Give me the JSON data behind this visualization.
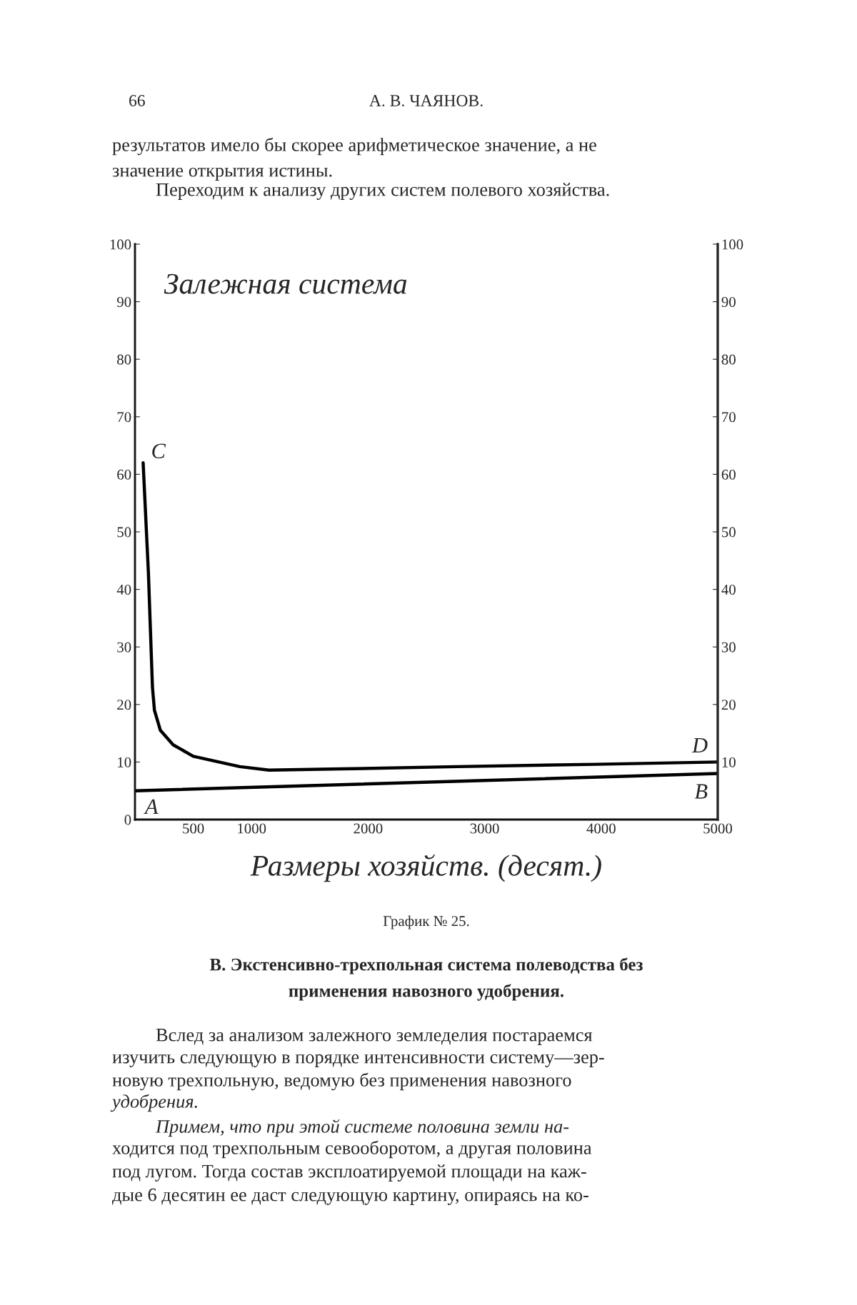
{
  "chart_data": {
    "type": "line",
    "title": "Залежная система",
    "xlabel": "Размеры хозяйств. (десят.)",
    "xlim": [
      0,
      5000
    ],
    "xticks": [
      500,
      1000,
      2000,
      3000,
      4000,
      5000
    ],
    "ylim": [
      0,
      100
    ],
    "yticks": [
      0,
      10,
      20,
      30,
      40,
      50,
      60,
      70,
      80,
      90,
      100
    ],
    "y2lim": [
      0,
      100
    ],
    "y2ticks": [
      10,
      20,
      30,
      40,
      50,
      60,
      70,
      80,
      90,
      100
    ],
    "series": [
      {
        "color": "#000000",
        "x": [
          70,
          115,
          150,
          167,
          218,
          327,
          500,
          720,
          900,
          1150,
          1770,
          2760,
          3950,
          5000
        ],
        "values": [
          62,
          43,
          23,
          19,
          15.5,
          13,
          11,
          10,
          9.2,
          8.6,
          8.8,
          9.2,
          9.6,
          10
        ]
      },
      {
        "color": "#000000",
        "x": [
          0,
          5000
        ],
        "values": [
          5,
          8
        ]
      }
    ],
    "grid": false,
    "legend": false,
    "marker": "none",
    "line_style": "solid",
    "annotations": [
      {
        "text": "C",
        "x": 70,
        "y": 62
      },
      {
        "text": "D",
        "x": 5000,
        "y": 10
      },
      {
        "text": "A",
        "x": 0,
        "y": 5
      },
      {
        "text": "B",
        "x": 5000,
        "y": 8
      },
      "66",
      "А. В. ЧАЯНОВ.",
      "результатов имело бы скорее арифметическое значение, а не",
      "значение открытия истины.",
      "Переходим к анализу других систем полевого хозяйства.",
      "График № 25.",
      "В. Экстенсивно-трехпольная система полеводства без",
      "применения навозного удобрения.",
      "Вслед за анализом залежного земледелия постараемся",
      "изучить следующую в порядке интенсивности систему—зер-",
      "новую трехпольную, ведомую без применения навозного",
      "удобрения.",
      "Примем, что при этой системе половина земли на-",
      "ходится под трехпольным севооборотом, а другая половина",
      "под лугом. Тогда состав эксплоатируемой площади на каж-",
      "дые 6 десятин ее даст следующую картину, опираясь на ко-"
    ]
  }
}
